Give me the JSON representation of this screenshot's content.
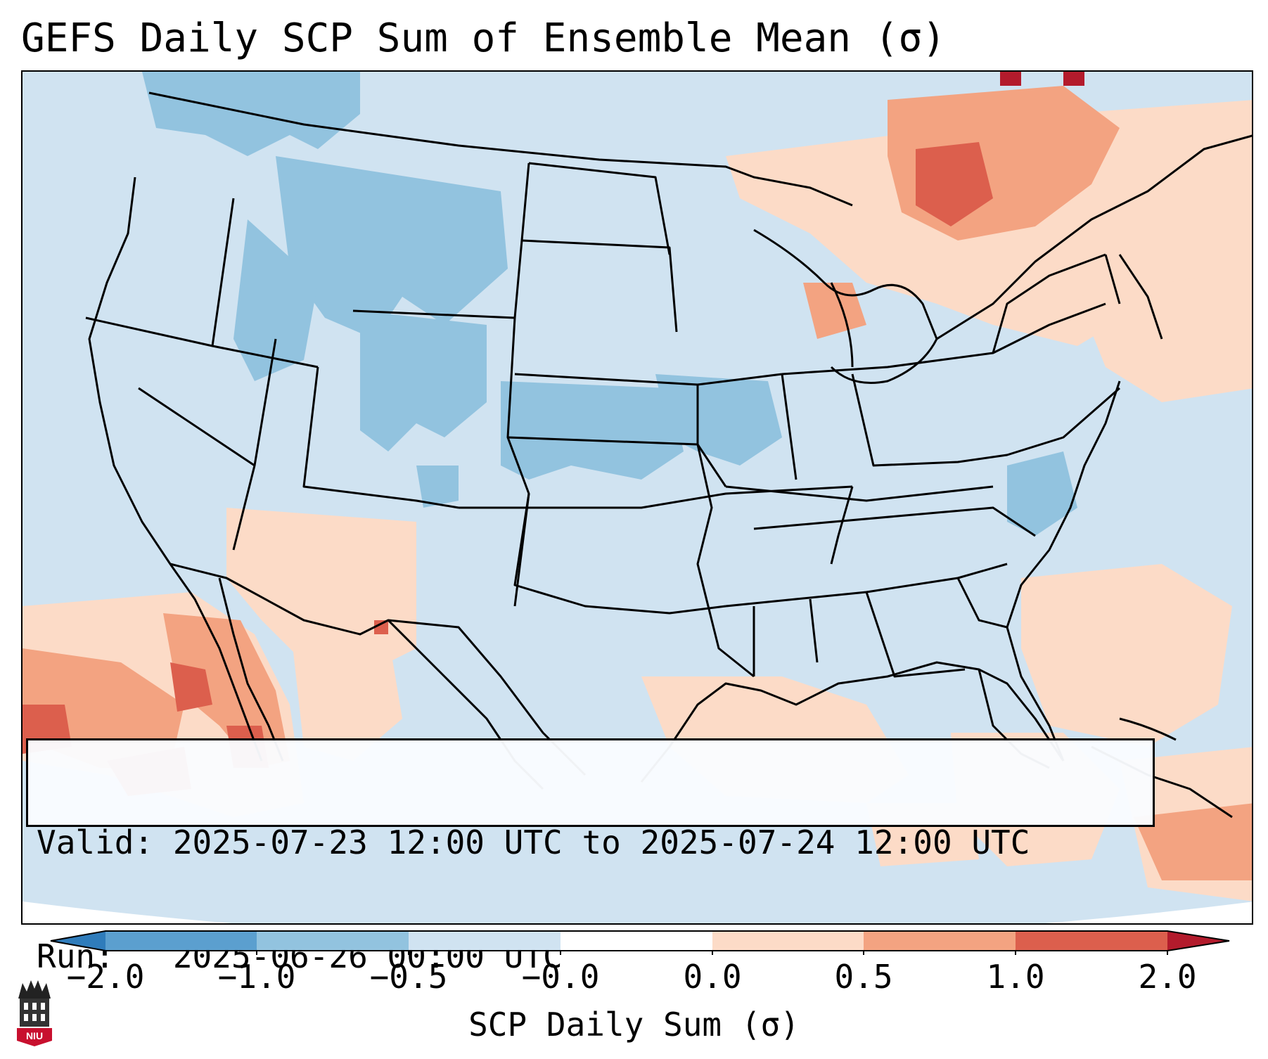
{
  "title": "GEFS Daily SCP Sum of Ensemble Mean (σ)",
  "info": {
    "valid": "Valid: 2025-07-23 12:00 UTC to 2025-07-24 12:00 UTC",
    "run": "Run:   2025-06-26 00:00 UTC"
  },
  "colorbar": {
    "label": "SCP Daily Sum (σ)",
    "ticks": [
      "−2.0",
      "−1.0",
      "−0.5",
      "−0.0",
      "0.0",
      "0.5",
      "1.0",
      "2.0"
    ],
    "colors": [
      "#2f7cbb",
      "#5b9fcf",
      "#92c3df",
      "#d0e3f1",
      "#ffffff",
      "#fcdbc7",
      "#f3a381",
      "#dc5f4d",
      "#b31b2c"
    ]
  },
  "logo": {
    "text": "NIU"
  },
  "map_legend_classes": {
    "background": "#d0e3f1",
    "outside_domain": "#ffffff",
    "low_negative": "#92c3df",
    "low_positive": "#fcdbc7",
    "mid_positive": "#f3a381",
    "high_positive": "#dc5f4d",
    "extreme_positive": "#b31b2c"
  }
}
